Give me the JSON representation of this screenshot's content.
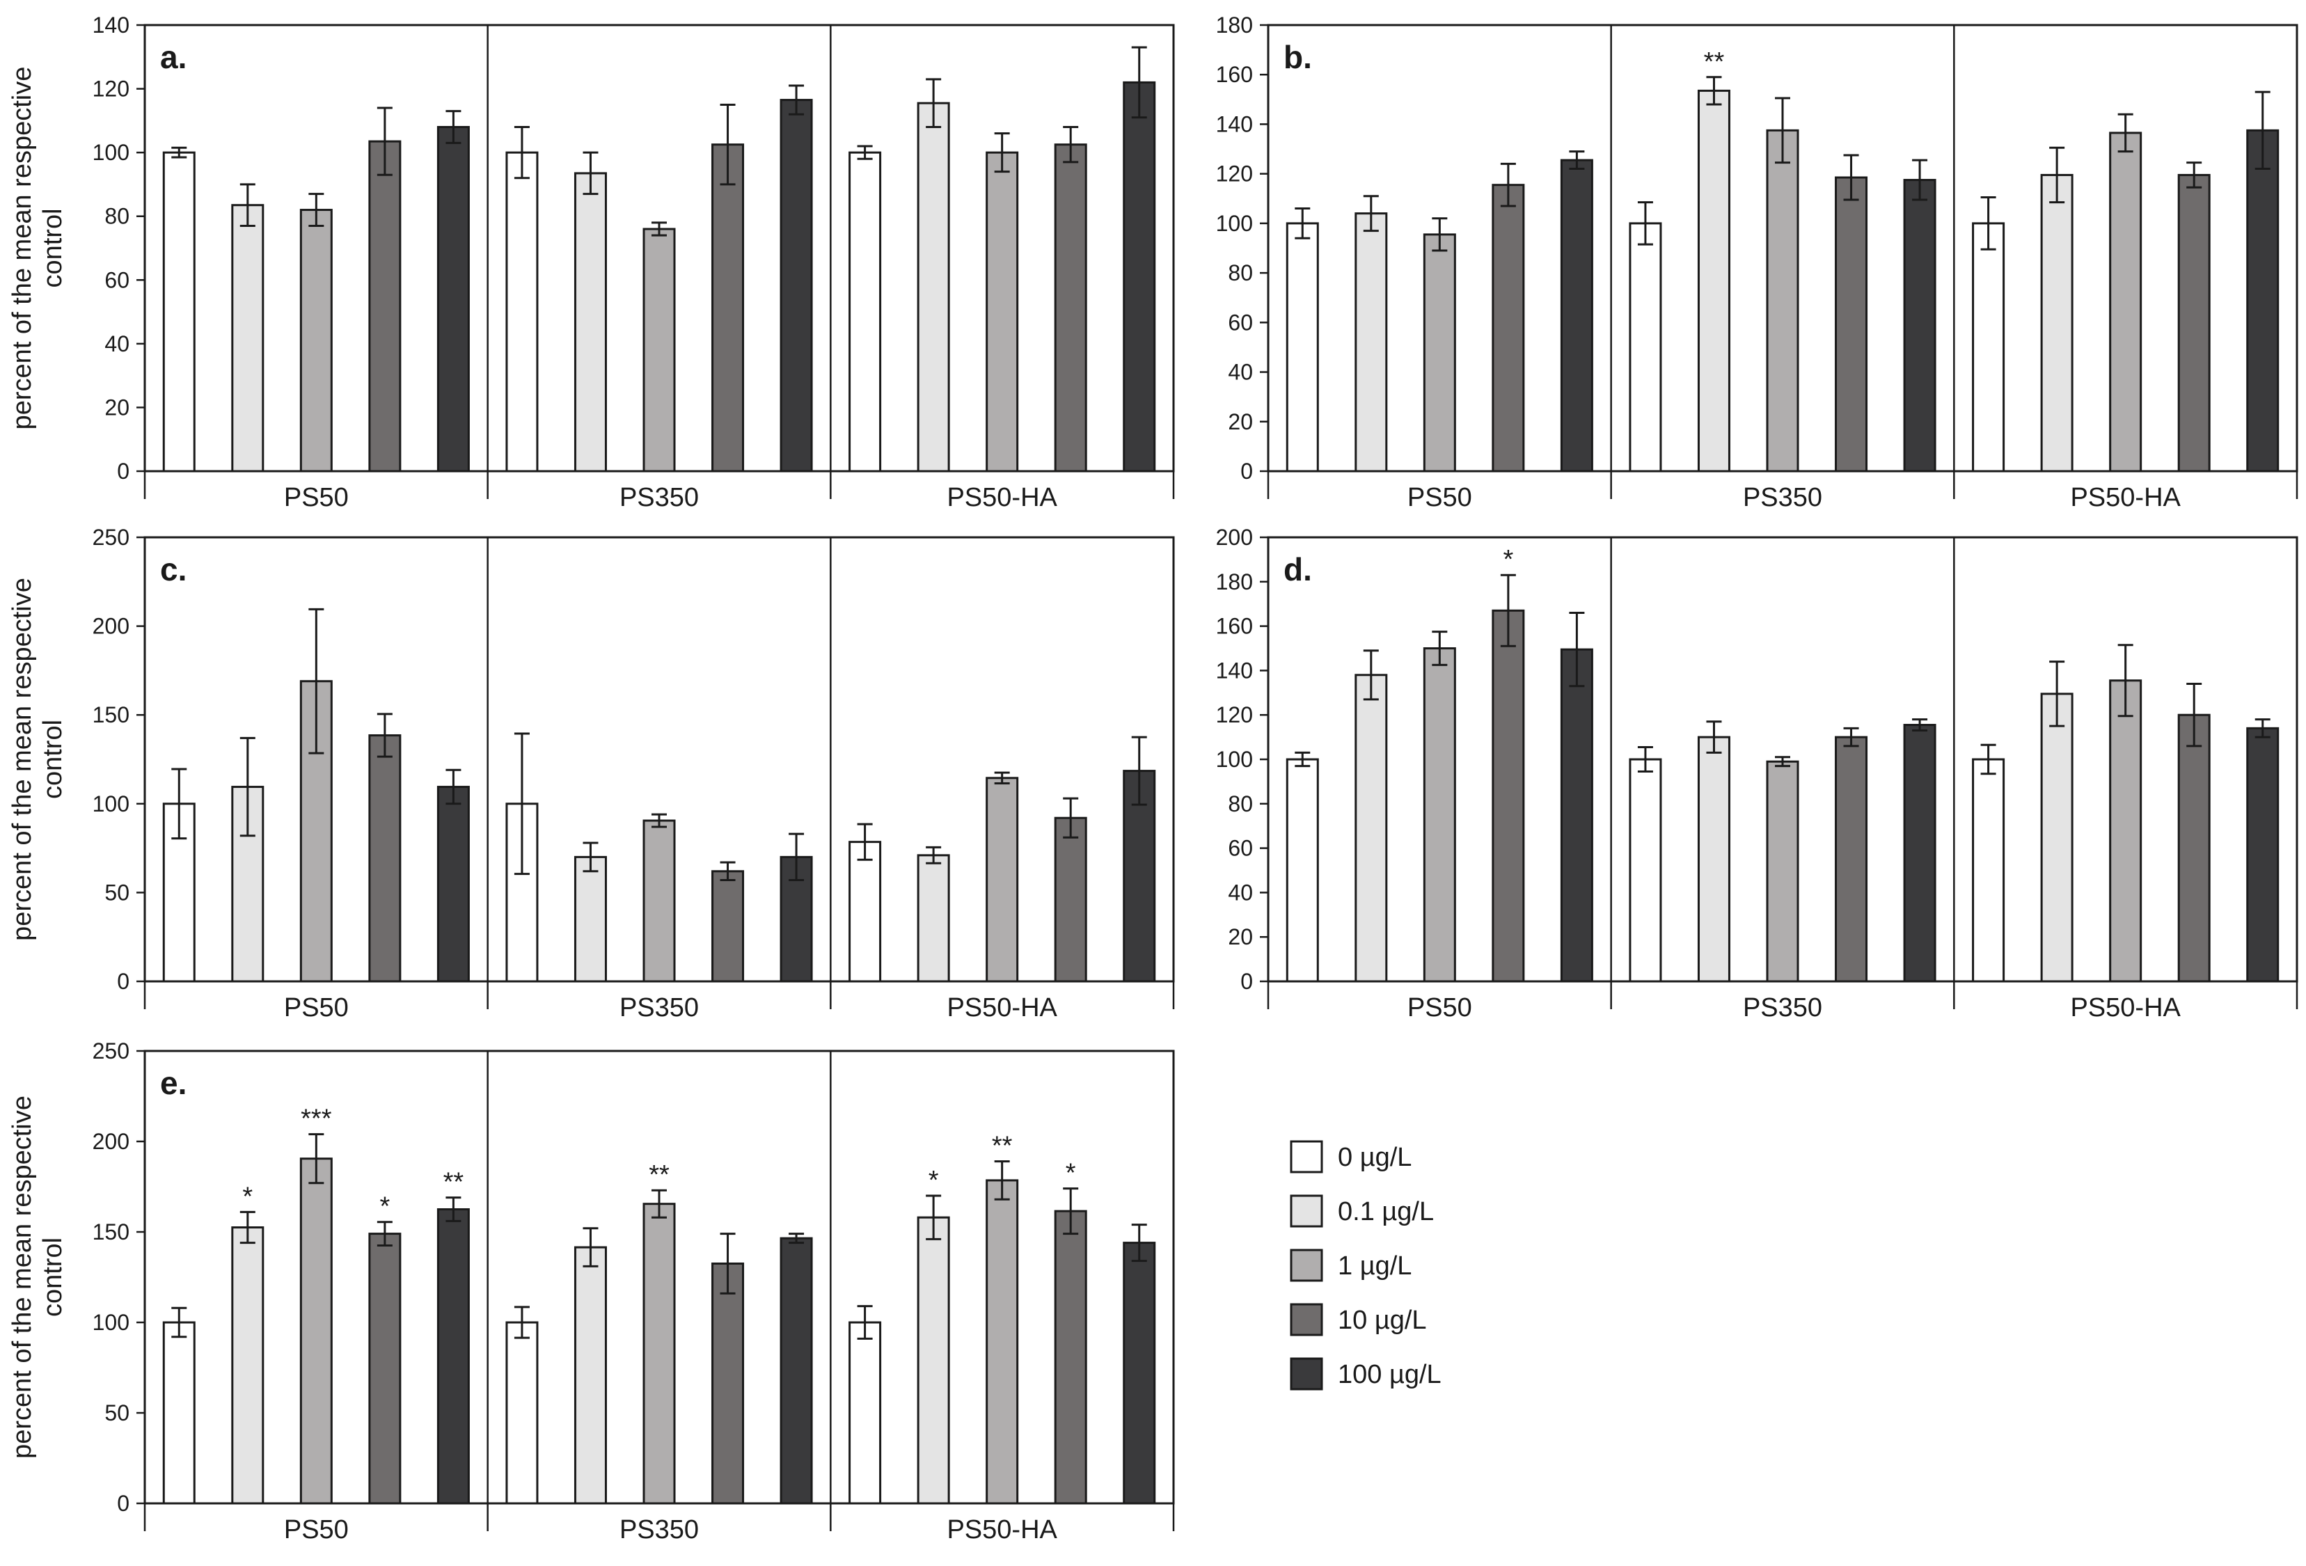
{
  "chart_data": [
    {
      "type": "bar",
      "panel": "a.",
      "ylabel": [
        "percent of the mean respective",
        "control"
      ],
      "ylim": [
        0,
        140
      ],
      "yticks": [
        0,
        20,
        40,
        60,
        80,
        100,
        120,
        140
      ],
      "groups": [
        "PS50",
        "PS350",
        "PS50-HA"
      ],
      "bars": [
        [
          {
            "v": 100,
            "e": 1.5,
            "s": ""
          },
          {
            "v": 83.5,
            "e": 6.5,
            "s": ""
          },
          {
            "v": 82,
            "e": 5,
            "s": ""
          },
          {
            "v": 103.5,
            "e": 10.5,
            "s": ""
          },
          {
            "v": 108,
            "e": 5,
            "s": ""
          }
        ],
        [
          {
            "v": 100,
            "e": 8,
            "s": ""
          },
          {
            "v": 93.5,
            "e": 6.5,
            "s": ""
          },
          {
            "v": 76,
            "e": 2,
            "s": ""
          },
          {
            "v": 102.5,
            "e": 12.5,
            "s": ""
          },
          {
            "v": 116.5,
            "e": 4.5,
            "s": ""
          }
        ],
        [
          {
            "v": 100,
            "e": 2,
            "s": ""
          },
          {
            "v": 115.5,
            "e": 7.5,
            "s": ""
          },
          {
            "v": 100,
            "e": 6,
            "s": ""
          },
          {
            "v": 102.5,
            "e": 5.5,
            "s": ""
          },
          {
            "v": 122,
            "e": 11,
            "s": ""
          }
        ]
      ]
    },
    {
      "type": "bar",
      "panel": "b.",
      "ylabel": [],
      "ylim": [
        0,
        180
      ],
      "yticks": [
        0,
        20,
        40,
        60,
        80,
        100,
        120,
        140,
        160,
        180
      ],
      "groups": [
        "PS50",
        "PS350",
        "PS50-HA"
      ],
      "bars": [
        [
          {
            "v": 100,
            "e": 6,
            "s": ""
          },
          {
            "v": 104,
            "e": 7,
            "s": ""
          },
          {
            "v": 95.5,
            "e": 6.5,
            "s": ""
          },
          {
            "v": 115.5,
            "e": 8.5,
            "s": ""
          },
          {
            "v": 125.5,
            "e": 3.5,
            "s": ""
          }
        ],
        [
          {
            "v": 100,
            "e": 8.5,
            "s": ""
          },
          {
            "v": 153.5,
            "e": 5.5,
            "s": "**"
          },
          {
            "v": 137.5,
            "e": 13,
            "s": ""
          },
          {
            "v": 118.5,
            "e": 9,
            "s": ""
          },
          {
            "v": 117.5,
            "e": 8,
            "s": ""
          }
        ],
        [
          {
            "v": 100,
            "e": 10.5,
            "s": ""
          },
          {
            "v": 119.5,
            "e": 11,
            "s": ""
          },
          {
            "v": 136.5,
            "e": 7.5,
            "s": ""
          },
          {
            "v": 119.5,
            "e": 5,
            "s": ""
          },
          {
            "v": 137.5,
            "e": 15.5,
            "s": ""
          }
        ]
      ]
    },
    {
      "type": "bar",
      "panel": "c.",
      "ylabel": [
        "percent of the mean respective",
        "control"
      ],
      "ylim": [
        0,
        250
      ],
      "yticks": [
        0,
        50,
        100,
        150,
        200,
        250
      ],
      "groups": [
        "PS50",
        "PS350",
        "PS50-HA"
      ],
      "bars": [
        [
          {
            "v": 100,
            "e": 19.5,
            "s": ""
          },
          {
            "v": 109.5,
            "e": 27.5,
            "s": ""
          },
          {
            "v": 169,
            "e": 40.5,
            "s": ""
          },
          {
            "v": 138.5,
            "e": 12,
            "s": ""
          },
          {
            "v": 109.5,
            "e": 9.5,
            "s": ""
          }
        ],
        [
          {
            "v": 100,
            "e": 39.5,
            "s": ""
          },
          {
            "v": 70,
            "e": 8,
            "s": ""
          },
          {
            "v": 90.5,
            "e": 3.5,
            "s": ""
          },
          {
            "v": 62,
            "e": 5,
            "s": ""
          },
          {
            "v": 70,
            "e": 13,
            "s": ""
          }
        ],
        [
          {
            "v": 78.5,
            "e": 10,
            "s": ""
          },
          {
            "v": 71,
            "e": 4.5,
            "s": ""
          },
          {
            "v": 114.5,
            "e": 3,
            "s": ""
          },
          {
            "v": 92,
            "e": 11,
            "s": ""
          },
          {
            "v": 118.5,
            "e": 19,
            "s": ""
          }
        ]
      ]
    },
    {
      "type": "bar",
      "panel": "d.",
      "ylabel": [],
      "ylim": [
        0,
        200
      ],
      "yticks": [
        0,
        20,
        40,
        60,
        80,
        100,
        120,
        140,
        160,
        180,
        200
      ],
      "groups": [
        "PS50",
        "PS350",
        "PS50-HA"
      ],
      "bars": [
        [
          {
            "v": 100,
            "e": 3,
            "s": ""
          },
          {
            "v": 138,
            "e": 11,
            "s": ""
          },
          {
            "v": 150,
            "e": 7.5,
            "s": ""
          },
          {
            "v": 167,
            "e": 16,
            "s": "*"
          },
          {
            "v": 149.5,
            "e": 16.5,
            "s": ""
          }
        ],
        [
          {
            "v": 100,
            "e": 5.5,
            "s": ""
          },
          {
            "v": 110,
            "e": 7,
            "s": ""
          },
          {
            "v": 99,
            "e": 2,
            "s": ""
          },
          {
            "v": 110,
            "e": 4,
            "s": ""
          },
          {
            "v": 115.5,
            "e": 2.5,
            "s": ""
          }
        ],
        [
          {
            "v": 100,
            "e": 6.5,
            "s": ""
          },
          {
            "v": 129.5,
            "e": 14.5,
            "s": ""
          },
          {
            "v": 135.5,
            "e": 16,
            "s": ""
          },
          {
            "v": 120,
            "e": 14,
            "s": ""
          },
          {
            "v": 114,
            "e": 4,
            "s": ""
          }
        ]
      ]
    },
    {
      "type": "bar",
      "panel": "e.",
      "ylabel": [
        "percent of the mean respective",
        "control"
      ],
      "ylim": [
        0,
        250
      ],
      "yticks": [
        0,
        50,
        100,
        150,
        200,
        250
      ],
      "groups": [
        "PS50",
        "PS350",
        "PS50-HA"
      ],
      "bars": [
        [
          {
            "v": 100,
            "e": 8,
            "s": ""
          },
          {
            "v": 152.5,
            "e": 8.5,
            "s": "*"
          },
          {
            "v": 190.5,
            "e": 13.5,
            "s": "***"
          },
          {
            "v": 149,
            "e": 6.5,
            "s": "*"
          },
          {
            "v": 162.5,
            "e": 6.5,
            "s": "**"
          }
        ],
        [
          {
            "v": 100,
            "e": 8.5,
            "s": ""
          },
          {
            "v": 141.5,
            "e": 10.5,
            "s": ""
          },
          {
            "v": 165.5,
            "e": 7.5,
            "s": "**"
          },
          {
            "v": 132.5,
            "e": 16.5,
            "s": ""
          },
          {
            "v": 146.5,
            "e": 2.5,
            "s": ""
          }
        ],
        [
          {
            "v": 100,
            "e": 9,
            "s": ""
          },
          {
            "v": 158,
            "e": 12,
            "s": "*"
          },
          {
            "v": 178.5,
            "e": 10.5,
            "s": "**"
          },
          {
            "v": 161.5,
            "e": 12.5,
            "s": "*"
          },
          {
            "v": 144,
            "e": 10,
            "s": ""
          }
        ]
      ]
    }
  ],
  "legend": {
    "labels": [
      "0 µg/L",
      "0.1 µg/L",
      "1 µg/L",
      "10 µg/L",
      "100 µg/L"
    ],
    "colors": [
      "#ffffff",
      "#e4e4e4",
      "#b0aeae",
      "#6f6c6c",
      "#3a3a3c"
    ]
  },
  "bar_stroke": "#1a1a1a"
}
